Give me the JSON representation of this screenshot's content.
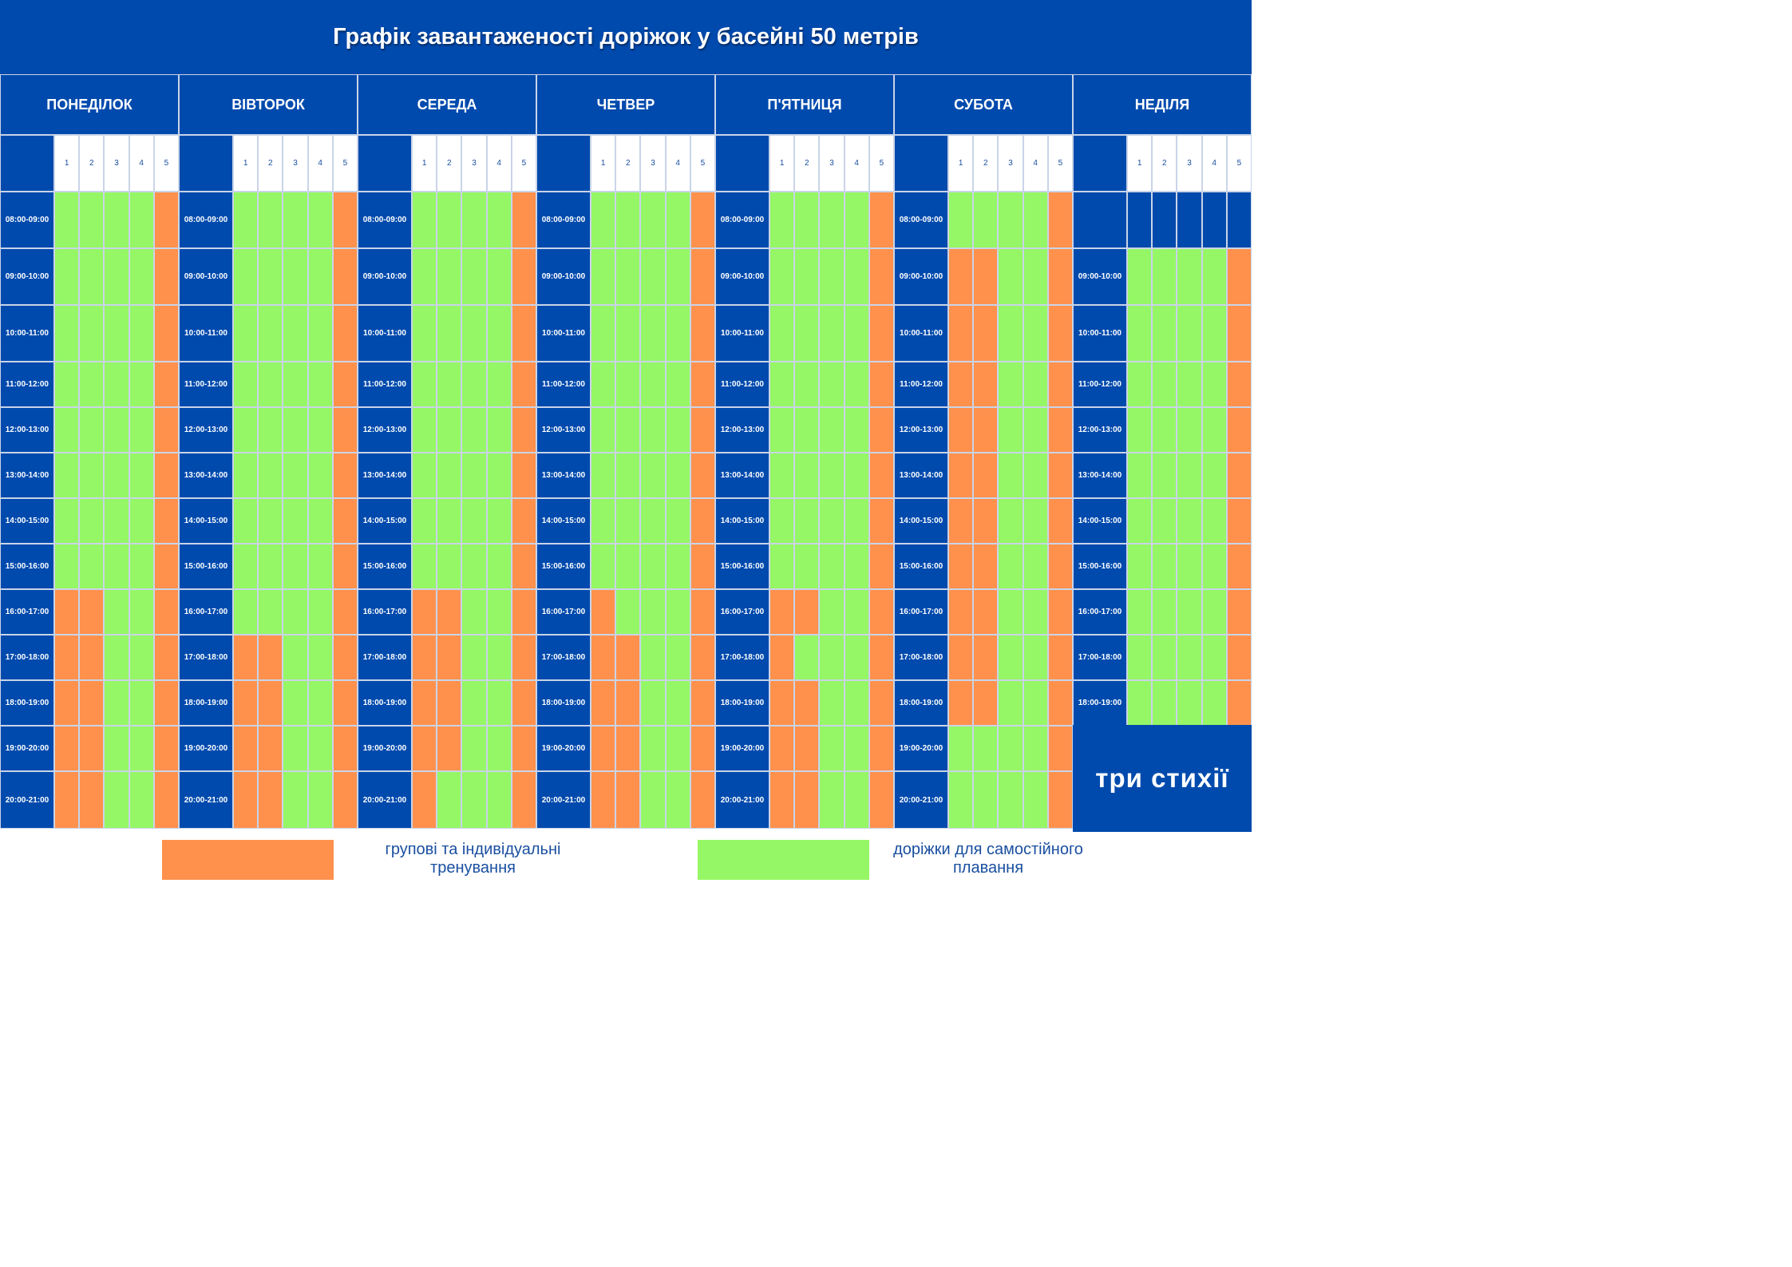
{
  "title": "Графік завантаженості доріжок у басейні 50 метрів",
  "colors": {
    "header": "#004aad",
    "orange": "#ff914d",
    "green": "#95f765"
  },
  "lanes": [
    "1",
    "2",
    "3",
    "4",
    "5"
  ],
  "days": [
    {
      "name": "ПОНЕДІЛОК",
      "slots": [
        "08:00-09:00",
        "09:00-10:00",
        "10:00-11:00",
        "11:00-12:00",
        "12:00-13:00",
        "13:00-14:00",
        "14:00-15:00",
        "15:00-16:00",
        "16:00-17:00",
        "17:00-18:00",
        "18:00-19:00",
        "19:00-20:00",
        "20:00-21:00"
      ],
      "rows": [
        "GGGGO",
        "GGGGO",
        "GGGGO",
        "GGGGO",
        "GGGGO",
        "GGGGO",
        "GGGGO",
        "GGGGO",
        "OOGGO",
        "OOGGO",
        "OOGGO",
        "OOGGO",
        "OOGGO"
      ]
    },
    {
      "name": "ВІВТОРОК",
      "slots": [
        "08:00-09:00",
        "09:00-10:00",
        "10:00-11:00",
        "11:00-12:00",
        "12:00-13:00",
        "13:00-14:00",
        "14:00-15:00",
        "15:00-16:00",
        "16:00-17:00",
        "17:00-18:00",
        "18:00-19:00",
        "19:00-20:00",
        "20:00-21:00"
      ],
      "rows": [
        "GGGGO",
        "GGGGO",
        "GGGGO",
        "GGGGO",
        "GGGGO",
        "GGGGO",
        "GGGGO",
        "GGGGO",
        "GGGGO",
        "OOGGO",
        "OOGGO",
        "OOGGO",
        "OOGGO"
      ]
    },
    {
      "name": "СЕРЕДА",
      "slots": [
        "08:00-09:00",
        "09:00-10:00",
        "10:00-11:00",
        "11:00-12:00",
        "12:00-13:00",
        "13:00-14:00",
        "14:00-15:00",
        "15:00-16:00",
        "16:00-17:00",
        "17:00-18:00",
        "18:00-19:00",
        "19:00-20:00",
        "20:00-21:00"
      ],
      "rows": [
        "GGGGO",
        "GGGGO",
        "GGGGO",
        "GGGGO",
        "GGGGO",
        "GGGGO",
        "GGGGO",
        "GGGGO",
        "OOGGO",
        "OOGGO",
        "OOGGO",
        "OOGGO",
        "OGGGO"
      ]
    },
    {
      "name": "ЧЕТВЕР",
      "slots": [
        "08:00-09:00",
        "09:00-10:00",
        "10:00-11:00",
        "11:00-12:00",
        "12:00-13:00",
        "13:00-14:00",
        "14:00-15:00",
        "15:00-16:00",
        "16:00-17:00",
        "17:00-18:00",
        "18:00-19:00",
        "19:00-20:00",
        "20:00-21:00"
      ],
      "rows": [
        "GGGGO",
        "GGGGO",
        "GGGGO",
        "GGGGO",
        "GGGGO",
        "GGGGO",
        "GGGGO",
        "GGGGO",
        "OGGGO",
        "OOGGO",
        "OOGGO",
        "OOGGO",
        "OOGGO"
      ]
    },
    {
      "name": "П'ЯТНИЦЯ",
      "slots": [
        "08:00-09:00",
        "09:00-10:00",
        "10:00-11:00",
        "11:00-12:00",
        "12:00-13:00",
        "13:00-14:00",
        "14:00-15:00",
        "15:00-16:00",
        "16:00-17:00",
        "17:00-18:00",
        "18:00-19:00",
        "19:00-20:00",
        "20:00-21:00"
      ],
      "rows": [
        "GGGGO",
        "GGGGO",
        "GGGGO",
        "GGGGO",
        "GGGGO",
        "GGGGO",
        "GGGGO",
        "GGGGO",
        "OOGGO",
        "OGGGO",
        "OOGGO",
        "OOGGO",
        "OOGGO"
      ]
    },
    {
      "name": "СУБОТА",
      "slots": [
        "08:00-09:00",
        "09:00-10:00",
        "10:00-11:00",
        "11:00-12:00",
        "12:00-13:00",
        "13:00-14:00",
        "14:00-15:00",
        "15:00-16:00",
        "16:00-17:00",
        "17:00-18:00",
        "18:00-19:00",
        "19:00-20:00",
        "20:00-21:00"
      ],
      "rows": [
        "GGGGO",
        "OOGGO",
        "OOGGO",
        "OOGGO",
        "OOGGO",
        "OOGGO",
        "OOGGO",
        "OOGGO",
        "OOGGO",
        "OOGGO",
        "OOGGO",
        "GGGGO",
        "GGGGO"
      ]
    },
    {
      "name": "НЕДІЛЯ",
      "slots": [
        "",
        "09:00-10:00",
        "10:00-11:00",
        "11:00-12:00",
        "12:00-13:00",
        "13:00-14:00",
        "14:00-15:00",
        "15:00-16:00",
        "16:00-17:00",
        "17:00-18:00",
        "18:00-19:00"
      ],
      "rows": [
        "BBBBB",
        "GGGGO",
        "GGGGO",
        "GGGGO",
        "GGGGO",
        "GGGGO",
        "GGGGO",
        "GGGGO",
        "GGGGO",
        "GGGGO",
        "GGGGO"
      ]
    }
  ],
  "logo": "три стихії",
  "legend": {
    "orange_label": "групові та індивідуальні тренування",
    "green_label": "доріжки для самостійного плавання"
  }
}
